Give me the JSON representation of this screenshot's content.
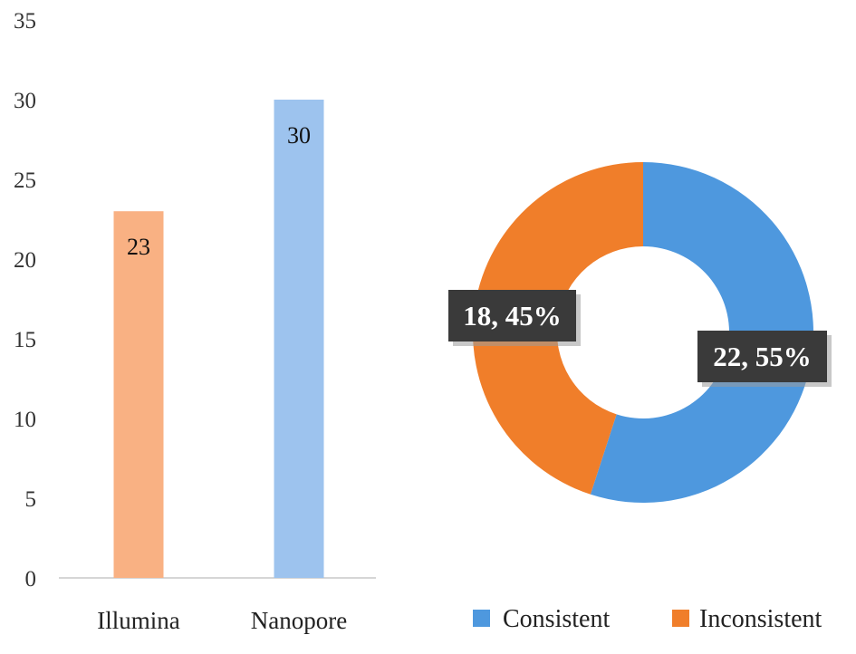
{
  "chart_data": [
    {
      "type": "bar",
      "categories": [
        "Illumina",
        "Nanopore"
      ],
      "values": [
        23,
        30
      ],
      "colors": [
        "#F9B183",
        "#9DC3EE"
      ],
      "data_labels": [
        "23",
        "30"
      ],
      "ylim": [
        0,
        35
      ],
      "yticks": [
        "0",
        "5",
        "10",
        "15",
        "20",
        "25",
        "30",
        "35"
      ],
      "grid": false,
      "title": "",
      "xlabel": "",
      "ylabel": ""
    },
    {
      "type": "pie",
      "donut": true,
      "labels": [
        "Consistent",
        "Inconsistent"
      ],
      "values": [
        22,
        18
      ],
      "percents": [
        55,
        45
      ],
      "colors": [
        "#4E98DE",
        "#F07E2A"
      ],
      "data_labels": [
        "22, 55%",
        "18, 45%"
      ],
      "legend_position": "bottom",
      "title": ""
    }
  ]
}
